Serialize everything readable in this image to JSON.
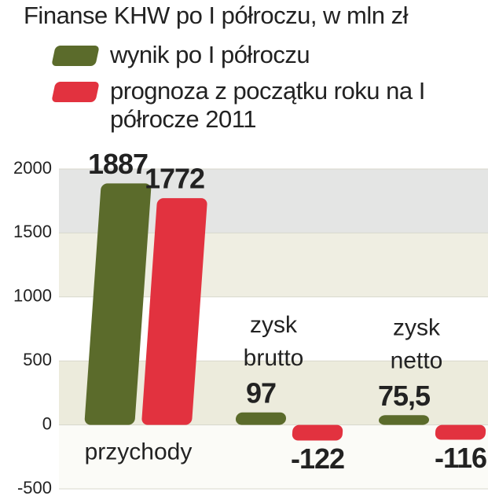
{
  "chart_data": {
    "type": "bar",
    "title": "Finanse KHW po I półroczu, w mln zł",
    "categories": [
      "przychody",
      "zysk brutto",
      "zysk netto"
    ],
    "series": [
      {
        "name": "wynik po I półroczu",
        "color": "#5b6b2b",
        "values": [
          1887,
          97,
          75.5
        ],
        "value_labels": [
          "1887",
          "97",
          "75,5"
        ]
      },
      {
        "name": "prognoza z początku roku na I półrocze 2011",
        "color": "#e2323f",
        "values": [
          1772,
          -122,
          -116
        ]
      }
    ],
    "ylim": [
      -500,
      2000
    ],
    "yticks": [
      -500,
      0,
      500,
      1000,
      1500,
      2000
    ],
    "grid": true
  }
}
